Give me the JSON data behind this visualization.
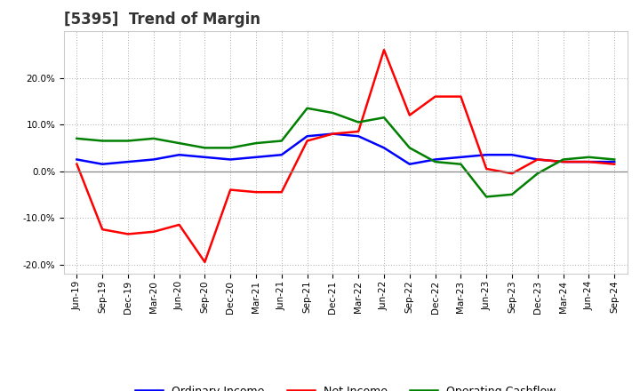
{
  "title": "[5395]  Trend of Margin",
  "x_labels": [
    "Jun-19",
    "Sep-19",
    "Dec-19",
    "Mar-20",
    "Jun-20",
    "Sep-20",
    "Dec-20",
    "Mar-21",
    "Jun-21",
    "Sep-21",
    "Dec-21",
    "Mar-22",
    "Jun-22",
    "Sep-22",
    "Dec-22",
    "Mar-23",
    "Jun-23",
    "Sep-23",
    "Dec-23",
    "Mar-24",
    "Jun-24",
    "Sep-24"
  ],
  "ordinary_income": [
    2.5,
    1.5,
    2.0,
    2.5,
    3.5,
    3.0,
    2.5,
    3.0,
    3.5,
    7.5,
    8.0,
    7.5,
    5.0,
    1.5,
    2.5,
    3.0,
    3.5,
    3.5,
    2.5,
    2.0,
    2.0,
    2.0
  ],
  "net_income": [
    1.5,
    -12.5,
    -13.5,
    -13.0,
    -11.5,
    -19.5,
    -4.0,
    -4.5,
    -4.5,
    6.5,
    8.0,
    8.5,
    26.0,
    12.0,
    16.0,
    16.0,
    0.5,
    -0.5,
    2.5,
    2.0,
    2.0,
    1.5
  ],
  "operating_cashflow": [
    7.0,
    6.5,
    6.5,
    7.0,
    6.0,
    5.0,
    5.0,
    6.0,
    6.5,
    13.5,
    12.5,
    10.5,
    11.5,
    5.0,
    2.0,
    1.5,
    -5.5,
    -5.0,
    -0.5,
    2.5,
    3.0,
    2.5
  ],
  "ylim": [
    -22,
    30
  ],
  "yticks": [
    -20,
    -10,
    0,
    10,
    20
  ],
  "line_colors": {
    "ordinary_income": "#0000FF",
    "net_income": "#FF0000",
    "operating_cashflow": "#008000"
  },
  "line_width": 1.8,
  "background_color": "#FFFFFF",
  "plot_bg_color": "#FFFFFF",
  "grid_color": "#AAAAAA",
  "legend_labels": [
    "Ordinary Income",
    "Net Income",
    "Operating Cashflow"
  ],
  "title_color": "#333333",
  "title_fontsize": 12,
  "tick_fontsize": 7.5
}
